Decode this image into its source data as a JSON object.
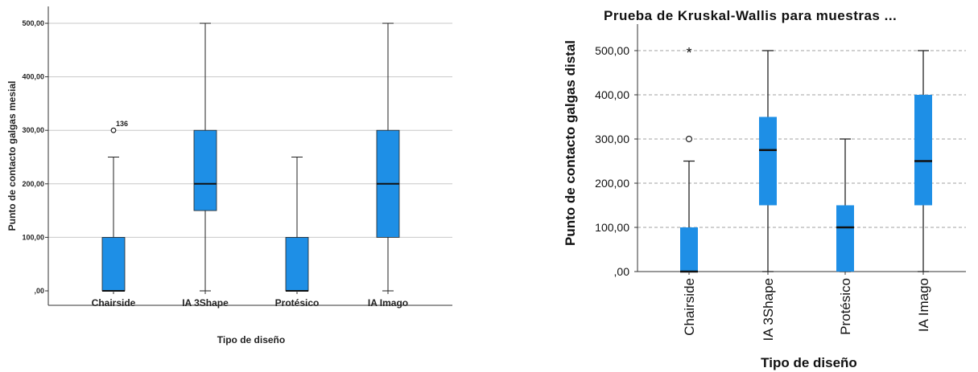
{
  "chart_data": [
    {
      "type": "box",
      "title": "",
      "xlabel": "Tipo de diseño",
      "ylabel": "Punto de contacto galgas mesial",
      "ylim": [
        0,
        500
      ],
      "ytick_values": [
        0,
        100,
        200,
        300,
        400,
        500
      ],
      "ytick_labels": [
        ",00",
        "100,00",
        "200,00",
        "300,00",
        "400,00",
        "500,00"
      ],
      "grid": "horizontal solid",
      "box_color": "#1e8fe6",
      "categories": [
        "Chairside",
        "IA 3Shape",
        "Protésico",
        "IA Imago"
      ],
      "boxes": [
        {
          "min": 0,
          "q1": 0,
          "median": 0,
          "q3": 100,
          "max": 250,
          "outliers": [
            {
              "value": 300,
              "symbol": "o",
              "label": "136"
            }
          ]
        },
        {
          "min": 0,
          "q1": 150,
          "median": 200,
          "q3": 300,
          "max": 500,
          "outliers": []
        },
        {
          "min": 0,
          "q1": 0,
          "median": 0,
          "q3": 100,
          "max": 250,
          "outliers": []
        },
        {
          "min": 0,
          "q1": 100,
          "median": 200,
          "q3": 300,
          "max": 500,
          "outliers": []
        }
      ]
    },
    {
      "type": "box",
      "title": "Prueba de Kruskal-Wallis para muestras ...",
      "xlabel": "Tipo de diseño",
      "ylabel": "Punto de contacto galgas distal",
      "ylim": [
        0,
        500
      ],
      "ytick_values": [
        0,
        100,
        200,
        300,
        400,
        500
      ],
      "ytick_labels": [
        ",00",
        "100,00",
        "200,00",
        "300,00",
        "400,00",
        "500,00"
      ],
      "grid": "horizontal dashed",
      "box_color": "#1e8fe6",
      "categories": [
        "Chairside",
        "IA 3Shape",
        "Protésico",
        "IA Imago"
      ],
      "boxes": [
        {
          "min": 0,
          "q1": 0,
          "median": 0,
          "q3": 100,
          "max": 250,
          "outliers": [
            {
              "value": 300,
              "symbol": "o",
              "label": ""
            },
            {
              "value": 500,
              "symbol": "*",
              "label": ""
            }
          ]
        },
        {
          "min": 0,
          "q1": 150,
          "median": 275,
          "q3": 350,
          "max": 500,
          "outliers": []
        },
        {
          "min": 0,
          "q1": 0,
          "median": 100,
          "q3": 150,
          "max": 300,
          "outliers": []
        },
        {
          "min": 0,
          "q1": 150,
          "median": 250,
          "q3": 400,
          "max": 500,
          "outliers": []
        }
      ]
    }
  ]
}
